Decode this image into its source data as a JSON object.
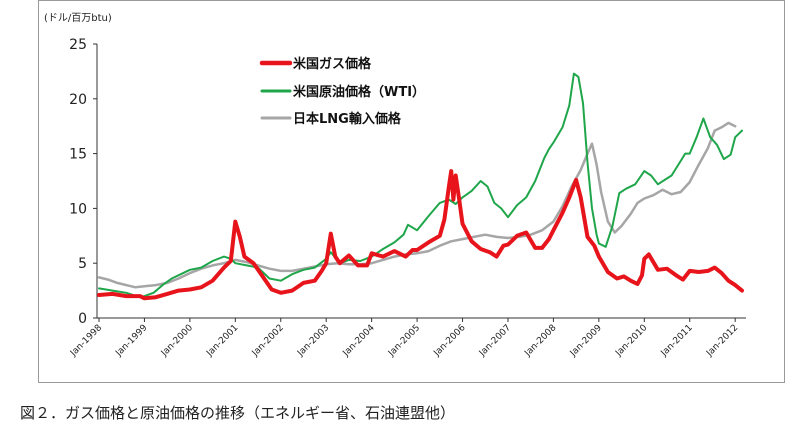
{
  "caption": "図２．ガス価格と原油価格の推移（エネルギー省、石油連盟他）",
  "chart_data": {
    "type": "line",
    "unit_label": "(ドル/百万btu)",
    "ylim": [
      0,
      25
    ],
    "yticks": [
      0,
      5,
      10,
      15,
      20,
      25
    ],
    "xlim": [
      1998.0,
      2012.15
    ],
    "xticks": [
      {
        "x": 1998,
        "label": "Jan-1998"
      },
      {
        "x": 1999,
        "label": "Jan-1999"
      },
      {
        "x": 2000,
        "label": "Jan-2000"
      },
      {
        "x": 2001,
        "label": "Jan-2001"
      },
      {
        "x": 2002,
        "label": "Jan-2002"
      },
      {
        "x": 2003,
        "label": "Jan-2003"
      },
      {
        "x": 2004,
        "label": "Jan-2004"
      },
      {
        "x": 2005,
        "label": "Jan-2005"
      },
      {
        "x": 2006,
        "label": "Jan-2006"
      },
      {
        "x": 2007,
        "label": "Jan-2007"
      },
      {
        "x": 2008,
        "label": "Jan-2008"
      },
      {
        "x": 2009,
        "label": "Jan-2009"
      },
      {
        "x": 2010,
        "label": "Jan-2010"
      },
      {
        "x": 2011,
        "label": "Jan-2011"
      },
      {
        "x": 2012,
        "label": "Jan-2012"
      }
    ],
    "legend_placement": "top-center",
    "grid": false,
    "series": [
      {
        "name": "米国ガス価格",
        "color": "#e8141b",
        "width": 4,
        "points": [
          [
            1998.0,
            2.1
          ],
          [
            1998.3,
            2.2
          ],
          [
            1998.6,
            2.0
          ],
          [
            1998.9,
            2.0
          ],
          [
            1999.0,
            1.8
          ],
          [
            1999.25,
            1.9
          ],
          [
            1999.5,
            2.2
          ],
          [
            1999.75,
            2.5
          ],
          [
            2000.0,
            2.6
          ],
          [
            2000.25,
            2.8
          ],
          [
            2000.5,
            3.4
          ],
          [
            2000.75,
            4.6
          ],
          [
            2000.9,
            5.2
          ],
          [
            2001.0,
            8.8
          ],
          [
            2001.1,
            7.4
          ],
          [
            2001.2,
            5.6
          ],
          [
            2001.4,
            5.0
          ],
          [
            2001.6,
            3.8
          ],
          [
            2001.8,
            2.6
          ],
          [
            2002.0,
            2.3
          ],
          [
            2002.25,
            2.5
          ],
          [
            2002.5,
            3.2
          ],
          [
            2002.75,
            3.4
          ],
          [
            2002.9,
            4.3
          ],
          [
            2003.0,
            5.0
          ],
          [
            2003.1,
            7.7
          ],
          [
            2003.2,
            5.6
          ],
          [
            2003.3,
            5.0
          ],
          [
            2003.5,
            5.7
          ],
          [
            2003.7,
            4.8
          ],
          [
            2003.9,
            4.8
          ],
          [
            2004.0,
            5.9
          ],
          [
            2004.25,
            5.6
          ],
          [
            2004.5,
            6.1
          ],
          [
            2004.75,
            5.6
          ],
          [
            2004.9,
            6.2
          ],
          [
            2005.0,
            6.2
          ],
          [
            2005.25,
            6.9
          ],
          [
            2005.5,
            7.5
          ],
          [
            2005.6,
            9.0
          ],
          [
            2005.7,
            12.0
          ],
          [
            2005.75,
            13.4
          ],
          [
            2005.8,
            10.8
          ],
          [
            2005.85,
            13.0
          ],
          [
            2005.92,
            11.0
          ],
          [
            2006.0,
            8.6
          ],
          [
            2006.2,
            7.0
          ],
          [
            2006.4,
            6.3
          ],
          [
            2006.6,
            6.0
          ],
          [
            2006.75,
            5.6
          ],
          [
            2006.9,
            6.6
          ],
          [
            2007.0,
            6.7
          ],
          [
            2007.2,
            7.5
          ],
          [
            2007.4,
            7.8
          ],
          [
            2007.6,
            6.4
          ],
          [
            2007.75,
            6.4
          ],
          [
            2007.9,
            7.2
          ],
          [
            2008.0,
            8.0
          ],
          [
            2008.2,
            9.6
          ],
          [
            2008.35,
            11.0
          ],
          [
            2008.5,
            12.6
          ],
          [
            2008.6,
            11.0
          ],
          [
            2008.75,
            7.4
          ],
          [
            2008.9,
            6.6
          ],
          [
            2009.0,
            5.6
          ],
          [
            2009.2,
            4.2
          ],
          [
            2009.4,
            3.6
          ],
          [
            2009.55,
            3.8
          ],
          [
            2009.7,
            3.4
          ],
          [
            2009.85,
            3.1
          ],
          [
            2009.95,
            3.9
          ],
          [
            2010.0,
            5.4
          ],
          [
            2010.1,
            5.8
          ],
          [
            2010.3,
            4.4
          ],
          [
            2010.5,
            4.5
          ],
          [
            2010.7,
            3.9
          ],
          [
            2010.85,
            3.5
          ],
          [
            2011.0,
            4.3
          ],
          [
            2011.2,
            4.2
          ],
          [
            2011.4,
            4.3
          ],
          [
            2011.55,
            4.6
          ],
          [
            2011.7,
            4.1
          ],
          [
            2011.85,
            3.4
          ],
          [
            2012.0,
            3.0
          ],
          [
            2012.15,
            2.5
          ]
        ]
      },
      {
        "name": "米国原油価格（WTI）",
        "color": "#1fa64a",
        "width": 2,
        "points": [
          [
            1998.0,
            2.7
          ],
          [
            1998.3,
            2.5
          ],
          [
            1998.6,
            2.3
          ],
          [
            1998.9,
            1.9
          ],
          [
            1999.0,
            2.0
          ],
          [
            1999.2,
            2.3
          ],
          [
            1999.4,
            3.0
          ],
          [
            1999.6,
            3.6
          ],
          [
            1999.8,
            4.0
          ],
          [
            2000.0,
            4.4
          ],
          [
            2000.25,
            4.6
          ],
          [
            2000.5,
            5.2
          ],
          [
            2000.75,
            5.6
          ],
          [
            2000.9,
            5.4
          ],
          [
            2001.0,
            5.0
          ],
          [
            2001.25,
            4.8
          ],
          [
            2001.5,
            4.6
          ],
          [
            2001.75,
            3.6
          ],
          [
            2002.0,
            3.4
          ],
          [
            2002.25,
            4.0
          ],
          [
            2002.5,
            4.4
          ],
          [
            2002.75,
            4.6
          ],
          [
            2003.0,
            5.4
          ],
          [
            2003.1,
            6.0
          ],
          [
            2003.3,
            5.0
          ],
          [
            2003.5,
            5.3
          ],
          [
            2003.75,
            5.2
          ],
          [
            2004.0,
            5.6
          ],
          [
            2004.25,
            6.3
          ],
          [
            2004.5,
            6.9
          ],
          [
            2004.7,
            7.6
          ],
          [
            2004.8,
            8.5
          ],
          [
            2005.0,
            8.0
          ],
          [
            2005.25,
            9.3
          ],
          [
            2005.5,
            10.5
          ],
          [
            2005.7,
            10.8
          ],
          [
            2005.85,
            10.4
          ],
          [
            2006.0,
            11.0
          ],
          [
            2006.2,
            11.6
          ],
          [
            2006.4,
            12.5
          ],
          [
            2006.55,
            12.0
          ],
          [
            2006.7,
            10.5
          ],
          [
            2006.85,
            10.0
          ],
          [
            2007.0,
            9.2
          ],
          [
            2007.2,
            10.3
          ],
          [
            2007.4,
            11.0
          ],
          [
            2007.6,
            12.5
          ],
          [
            2007.8,
            14.6
          ],
          [
            2007.9,
            15.4
          ],
          [
            2008.0,
            16.0
          ],
          [
            2008.2,
            17.4
          ],
          [
            2008.35,
            19.4
          ],
          [
            2008.45,
            22.3
          ],
          [
            2008.55,
            22.0
          ],
          [
            2008.65,
            19.6
          ],
          [
            2008.75,
            14.2
          ],
          [
            2008.85,
            10.0
          ],
          [
            2008.95,
            7.6
          ],
          [
            2009.0,
            6.8
          ],
          [
            2009.15,
            6.5
          ],
          [
            2009.3,
            8.4
          ],
          [
            2009.45,
            11.4
          ],
          [
            2009.6,
            11.8
          ],
          [
            2009.8,
            12.2
          ],
          [
            2010.0,
            13.4
          ],
          [
            2010.15,
            13.0
          ],
          [
            2010.3,
            12.2
          ],
          [
            2010.45,
            12.6
          ],
          [
            2010.6,
            13.0
          ],
          [
            2010.75,
            14.0
          ],
          [
            2010.9,
            15.0
          ],
          [
            2011.0,
            15.0
          ],
          [
            2011.15,
            16.5
          ],
          [
            2011.3,
            18.2
          ],
          [
            2011.45,
            16.5
          ],
          [
            2011.6,
            15.8
          ],
          [
            2011.75,
            14.5
          ],
          [
            2011.9,
            14.9
          ],
          [
            2012.0,
            16.5
          ],
          [
            2012.15,
            17.1
          ]
        ]
      },
      {
        "name": "日本LNG輸入価格",
        "color": "#a6a6a6",
        "width": 2.5,
        "points": [
          [
            1998.0,
            3.7
          ],
          [
            1998.2,
            3.5
          ],
          [
            1998.4,
            3.2
          ],
          [
            1998.6,
            3.0
          ],
          [
            1998.8,
            2.8
          ],
          [
            1999.0,
            2.9
          ],
          [
            1999.25,
            3.0
          ],
          [
            1999.5,
            3.2
          ],
          [
            1999.75,
            3.6
          ],
          [
            2000.0,
            4.1
          ],
          [
            2000.25,
            4.5
          ],
          [
            2000.5,
            4.8
          ],
          [
            2000.75,
            5.0
          ],
          [
            2001.0,
            5.3
          ],
          [
            2001.25,
            5.1
          ],
          [
            2001.5,
            4.8
          ],
          [
            2001.75,
            4.5
          ],
          [
            2002.0,
            4.3
          ],
          [
            2002.25,
            4.3
          ],
          [
            2002.5,
            4.5
          ],
          [
            2002.75,
            4.7
          ],
          [
            2003.0,
            4.9
          ],
          [
            2003.25,
            5.0
          ],
          [
            2003.5,
            4.9
          ],
          [
            2003.75,
            4.9
          ],
          [
            2004.0,
            5.0
          ],
          [
            2004.25,
            5.3
          ],
          [
            2004.5,
            5.6
          ],
          [
            2004.75,
            5.8
          ],
          [
            2005.0,
            5.9
          ],
          [
            2005.25,
            6.1
          ],
          [
            2005.5,
            6.6
          ],
          [
            2005.75,
            7.0
          ],
          [
            2006.0,
            7.2
          ],
          [
            2006.25,
            7.4
          ],
          [
            2006.5,
            7.6
          ],
          [
            2006.75,
            7.4
          ],
          [
            2007.0,
            7.3
          ],
          [
            2007.25,
            7.4
          ],
          [
            2007.5,
            7.6
          ],
          [
            2007.75,
            8.0
          ],
          [
            2008.0,
            8.8
          ],
          [
            2008.2,
            10.2
          ],
          [
            2008.4,
            12.0
          ],
          [
            2008.6,
            13.5
          ],
          [
            2008.75,
            15.0
          ],
          [
            2008.85,
            15.9
          ],
          [
            2008.95,
            14.0
          ],
          [
            2009.05,
            11.5
          ],
          [
            2009.2,
            8.8
          ],
          [
            2009.35,
            7.8
          ],
          [
            2009.5,
            8.4
          ],
          [
            2009.7,
            9.5
          ],
          [
            2009.85,
            10.5
          ],
          [
            2010.0,
            10.9
          ],
          [
            2010.2,
            11.2
          ],
          [
            2010.4,
            11.7
          ],
          [
            2010.6,
            11.3
          ],
          [
            2010.8,
            11.5
          ],
          [
            2011.0,
            12.4
          ],
          [
            2011.2,
            14.0
          ],
          [
            2011.4,
            15.5
          ],
          [
            2011.55,
            17.1
          ],
          [
            2011.7,
            17.4
          ],
          [
            2011.85,
            17.8
          ],
          [
            2012.0,
            17.5
          ]
        ]
      }
    ]
  }
}
